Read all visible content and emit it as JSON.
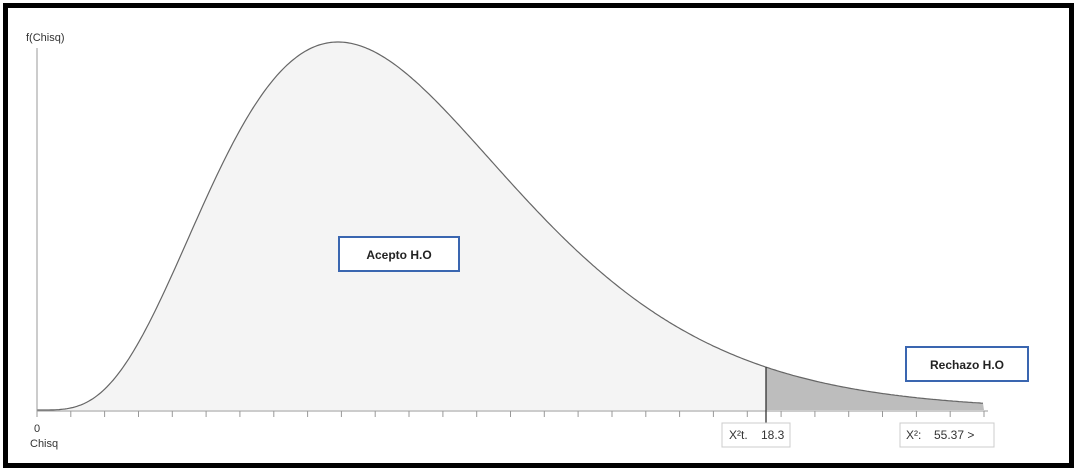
{
  "chart_data": {
    "type": "area",
    "distribution": "chi-square",
    "ylabel": "f(Chisq)",
    "xlabel": "Chisq",
    "x_origin_label": "0",
    "critical_value": {
      "label_prefix": "X²t.",
      "value": "18.3"
    },
    "calculated_value": {
      "label_prefix": "X²:",
      "value": "55.37 >"
    },
    "regions": [
      {
        "name": "Acepto H.O",
        "label": "Acepto H.O"
      },
      {
        "name": "Rechazo H.O",
        "label": "Rechazo H.O"
      }
    ],
    "colors": {
      "accept_fill": "#f4f4f4",
      "reject_fill": "#bdbdbd",
      "curve": "#666666",
      "label_border": "#3a66b0"
    },
    "x_tick_count": 28
  }
}
